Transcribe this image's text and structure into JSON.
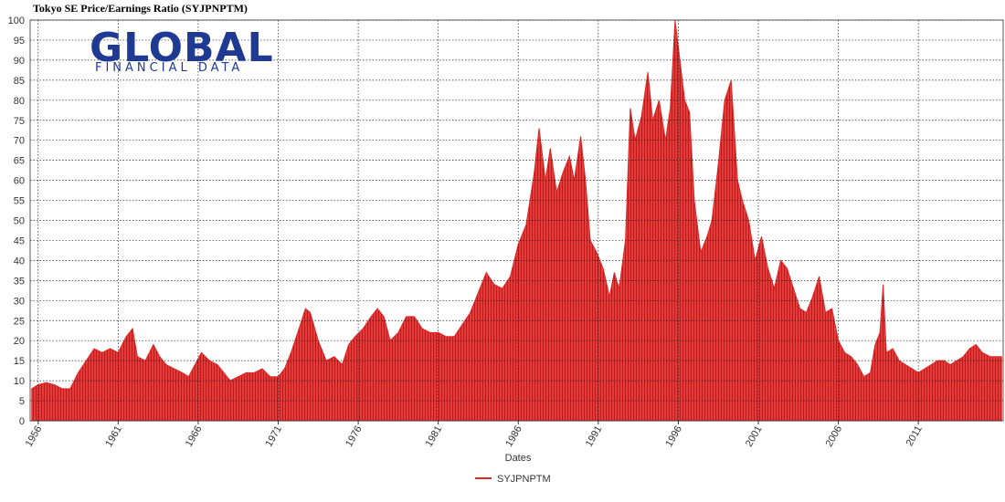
{
  "chart_data": {
    "type": "area",
    "title": "Tokyo SE Price/Earnings Ratio (SYJPNPTM)",
    "logo": {
      "main": "GLOBAL",
      "sub": "FINANCIAL DATA"
    },
    "x_label": "Dates",
    "xlim": [
      1955.5,
      2016.3
    ],
    "xticks": [
      1956,
      1961,
      1966,
      1971,
      1976,
      1981,
      1986,
      1991,
      1996,
      2001,
      2006,
      2011
    ],
    "ylim": [
      0,
      100
    ],
    "yticks": [
      0,
      5,
      10,
      15,
      20,
      25,
      30,
      35,
      40,
      45,
      50,
      55,
      60,
      65,
      70,
      75,
      80,
      85,
      90,
      95,
      100
    ],
    "grid": true,
    "legend": "bottom",
    "x": [
      1955.6,
      1956,
      1956.5,
      1957,
      1957.5,
      1958,
      1958.5,
      1959,
      1959.5,
      1960,
      1960.5,
      1961,
      1961.5,
      1961.9,
      1962.2,
      1962.7,
      1963.2,
      1963.6,
      1964,
      1964.5,
      1965,
      1965.4,
      1965.8,
      1966.2,
      1966.7,
      1967.2,
      1967.6,
      1968,
      1968.5,
      1969,
      1969.5,
      1970,
      1970.5,
      1971,
      1971.4,
      1971.8,
      1972.3,
      1972.7,
      1973,
      1973.5,
      1974,
      1974.5,
      1975,
      1975.4,
      1975.8,
      1976.3,
      1976.8,
      1977.2,
      1977.6,
      1978,
      1978.5,
      1979,
      1979.5,
      1980,
      1980.5,
      1981,
      1981.5,
      1982,
      1982.5,
      1983,
      1983.5,
      1984,
      1984.5,
      1985,
      1985.5,
      1986,
      1986.5,
      1987,
      1987.3,
      1987.7,
      1988,
      1988.4,
      1988.8,
      1989.2,
      1989.5,
      1989.9,
      1990.2,
      1990.5,
      1990.9,
      1991.3,
      1991.7,
      1992,
      1992.3,
      1992.7,
      1993,
      1993.3,
      1993.7,
      1994.1,
      1994.4,
      1994.8,
      1995.2,
      1995.5,
      1995.8,
      1996.1,
      1996.4,
      1996.7,
      1997,
      1997.4,
      1997.8,
      1998.1,
      1998.5,
      1998.9,
      1999.3,
      1999.7,
      2000,
      2000.4,
      2000.8,
      2001.2,
      2001.6,
      2002,
      2002.4,
      2002.8,
      2003.2,
      2003.6,
      2004,
      2004.4,
      2004.8,
      2005.2,
      2005.6,
      2006,
      2006.4,
      2006.8,
      2007.2,
      2007.6,
      2008,
      2008.3,
      2008.6,
      2008.8,
      2009,
      2009.4,
      2009.8,
      2010.2,
      2010.6,
      2011,
      2011.4,
      2011.8,
      2012.2,
      2012.6,
      2013,
      2013.4,
      2013.8,
      2014.2,
      2014.6,
      2015,
      2015.5,
      2016.2
    ],
    "series": [
      {
        "name": "SYJPNPTM",
        "color": "#e02828",
        "values": [
          8,
          9,
          9.5,
          9,
          8,
          8,
          12,
          15,
          18,
          17,
          18,
          17,
          21,
          23,
          16,
          15,
          19,
          16,
          14,
          13,
          12,
          11,
          14,
          17,
          15,
          14,
          12,
          10,
          11,
          12,
          12,
          13,
          11,
          11,
          13,
          17,
          23,
          28,
          27,
          20,
          15,
          16,
          14,
          19,
          21,
          23,
          26,
          28,
          26,
          20,
          22,
          26,
          26,
          23,
          22,
          22,
          21,
          21,
          24,
          27,
          32,
          37,
          34,
          33,
          36,
          44,
          49,
          62,
          73,
          60,
          68,
          57,
          62,
          66,
          60,
          71,
          60,
          45,
          42,
          38,
          31,
          37,
          33,
          45,
          78,
          70,
          76,
          87,
          75,
          80,
          70,
          78,
          100,
          90,
          80,
          77,
          55,
          42,
          46,
          50,
          64,
          80,
          85,
          60,
          55,
          50,
          40,
          46,
          38,
          33,
          40,
          38,
          33,
          28,
          27,
          31,
          36,
          27,
          28,
          20,
          17,
          16,
          14,
          11,
          12,
          19,
          22,
          34,
          17,
          18,
          15,
          14,
          13,
          12,
          13,
          14,
          15,
          15,
          14,
          15,
          16,
          18,
          19,
          17,
          16,
          16
        ]
      }
    ]
  }
}
